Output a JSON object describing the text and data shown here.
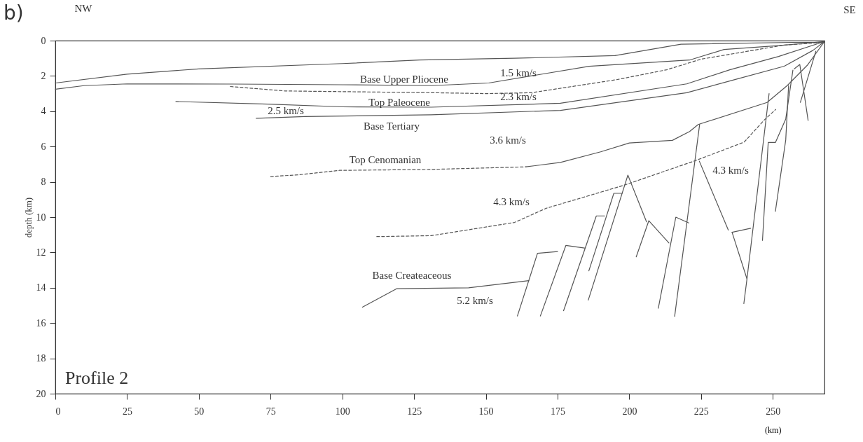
{
  "chart_data": {
    "type": "line",
    "title": "b)",
    "xlabel": "(km)",
    "ylabel": "depth (km)",
    "xlim": [
      0,
      268
    ],
    "ylim": [
      20,
      0
    ],
    "xticks": [
      0,
      25,
      50,
      75,
      100,
      125,
      150,
      175,
      200,
      225,
      250
    ],
    "yticks": [
      0,
      2,
      4,
      6,
      8,
      10,
      12,
      14,
      16,
      18,
      20
    ],
    "grid": false,
    "marker": "none",
    "series": [
      {
        "color": "#555555",
        "line_style": "solid",
        "x": [
          0,
          25,
          50,
          100,
          127,
          160,
          195,
          218,
          257,
          268
        ],
        "values": [
          2.4,
          1.9,
          1.6,
          1.3,
          1.1,
          1.0,
          0.85,
          0.2,
          0.1,
          0.1
        ]
      },
      {
        "color": "#555555",
        "line_style": "solid",
        "x": [
          0,
          10,
          25,
          62,
          100,
          131,
          151,
          186,
          221,
          233,
          252,
          268
        ],
        "values": [
          2.75,
          2.55,
          2.45,
          2.46,
          2.5,
          2.55,
          2.4,
          1.45,
          1.1,
          0.5,
          0.28,
          0.05
        ]
      },
      {
        "color": "#555555",
        "line_style": "dashed",
        "x": [
          61,
          80,
          131,
          150,
          166,
          196,
          213,
          225,
          254,
          268
        ],
        "values": [
          2.6,
          2.85,
          2.95,
          3.0,
          2.95,
          2.2,
          1.65,
          1.05,
          0.25,
          0.1
        ]
      },
      {
        "color": "#555555",
        "line_style": "solid",
        "x": [
          42,
          74,
          100,
          131,
          176,
          220,
          235,
          252,
          268
        ],
        "values": [
          3.45,
          3.6,
          3.75,
          3.77,
          3.55,
          2.45,
          1.65,
          0.9,
          0.05
        ]
      },
      {
        "color": "#555555",
        "line_style": "solid",
        "x": [
          70,
          87,
          109,
          131,
          176,
          220,
          237,
          254,
          264,
          268
        ],
        "values": [
          4.4,
          4.3,
          4.25,
          4.2,
          3.95,
          2.95,
          2.2,
          1.45,
          0.55,
          0.05
        ]
      },
      {
        "color": "#555555",
        "line_style": "dashed",
        "x": [
          75,
          85,
          99,
          130,
          164
        ],
        "values": [
          7.7,
          7.6,
          7.35,
          7.3,
          7.15
        ]
      },
      {
        "color": "#555555",
        "line_style": "solid",
        "x": [
          164,
          176,
          190,
          200,
          215,
          221,
          224,
          248,
          255,
          262,
          268
        ],
        "values": [
          7.15,
          6.9,
          6.3,
          5.8,
          5.65,
          5.15,
          4.75,
          3.5,
          2.55,
          1.4,
          0.05
        ]
      },
      {
        "color": "#555555",
        "line_style": "dashed",
        "x": [
          112,
          131,
          160,
          171,
          198,
          223,
          240,
          247,
          251
        ],
        "values": [
          11.1,
          11.05,
          10.3,
          9.5,
          8.2,
          6.8,
          5.75,
          4.5,
          3.9
        ]
      },
      {
        "color": "#555555",
        "line_style": "solid",
        "x": [
          107,
          119,
          144,
          165
        ],
        "values": [
          15.1,
          14.05,
          14.0,
          13.6
        ]
      },
      {
        "color": "#555555",
        "line_style": "solid",
        "x": [
          161,
          168,
          175
        ],
        "values": [
          15.6,
          12.05,
          11.95
        ]
      },
      {
        "color": "#555555",
        "line_style": "solid",
        "x": [
          169,
          177.9,
          184.4
        ],
        "values": [
          15.6,
          11.6,
          11.75
        ]
      },
      {
        "color": "#555555",
        "line_style": "solid",
        "x": [
          177.1,
          188.5,
          191.4
        ],
        "values": [
          15.3,
          9.93,
          9.93
        ]
      },
      {
        "color": "#555555",
        "line_style": "solid",
        "x": [
          185.9,
          194.6,
          197.5
        ],
        "values": [
          13.04,
          8.65,
          8.65
        ]
      },
      {
        "color": "#555555",
        "line_style": "solid",
        "x": [
          185.7,
          199.5,
          206
        ],
        "values": [
          14.7,
          7.62,
          10.27
        ]
      },
      {
        "color": "#555555",
        "line_style": "solid",
        "x": [
          202.4,
          206.8,
          213.8
        ],
        "values": [
          12.25,
          10.2,
          11.46
        ]
      },
      {
        "color": "#555555",
        "line_style": "solid",
        "x": [
          210.1,
          216.2,
          220.7
        ],
        "values": [
          15.16,
          10.0,
          10.33
        ]
      },
      {
        "color": "#555555",
        "line_style": "solid",
        "x": [
          215.8,
          224.5
        ],
        "values": [
          15.62,
          4.75
        ]
      },
      {
        "color": "#555555",
        "line_style": "solid",
        "x": [
          224.4,
          234.5
        ],
        "values": [
          6.83,
          10.73
        ]
      },
      {
        "color": "#555555",
        "line_style": "solid",
        "x": [
          235.8,
          242.3
        ],
        "values": [
          10.86,
          10.63
        ]
      },
      {
        "color": "#555555",
        "line_style": "solid",
        "x": [
          235.8,
          241
        ],
        "values": [
          10.86,
          13.5
        ]
      },
      {
        "color": "#555555",
        "line_style": "solid",
        "x": [
          239.9,
          241,
          248.7
        ],
        "values": [
          14.9,
          13.5,
          3.0
        ]
      },
      {
        "color": "#555555",
        "line_style": "solid",
        "x": [
          246.4,
          248.4,
          250.9,
          254.5,
          257
        ],
        "values": [
          11.32,
          5.77,
          5.77,
          4.44,
          1.67
        ]
      },
      {
        "color": "#555555",
        "line_style": "solid",
        "x": [
          250.9,
          254.5,
          255.5
        ],
        "values": [
          9.67,
          5.63,
          2.54
        ]
      },
      {
        "color": "#555555",
        "line_style": "solid",
        "x": [
          257.5,
          259.4,
          262.3
        ],
        "values": [
          1.6,
          1.35,
          4.52
        ]
      },
      {
        "color": "#555555",
        "line_style": "solid",
        "x": [
          259.6,
          265
        ],
        "values": [
          3.5,
          0.6
        ]
      }
    ],
    "annotations": [
      "NW",
      "SE",
      "Profile 2",
      "Base Upper Pliocene",
      "1.5 km/s",
      "2.3 km/s",
      "Top Paleocene",
      "2.5 km/s",
      "Base Tertiary",
      "3.6 km/s",
      "Top Cenomanian",
      "4.3 km/s",
      "4.3 km/s",
      "Base Createaceous",
      "5.2 km/s"
    ]
  }
}
